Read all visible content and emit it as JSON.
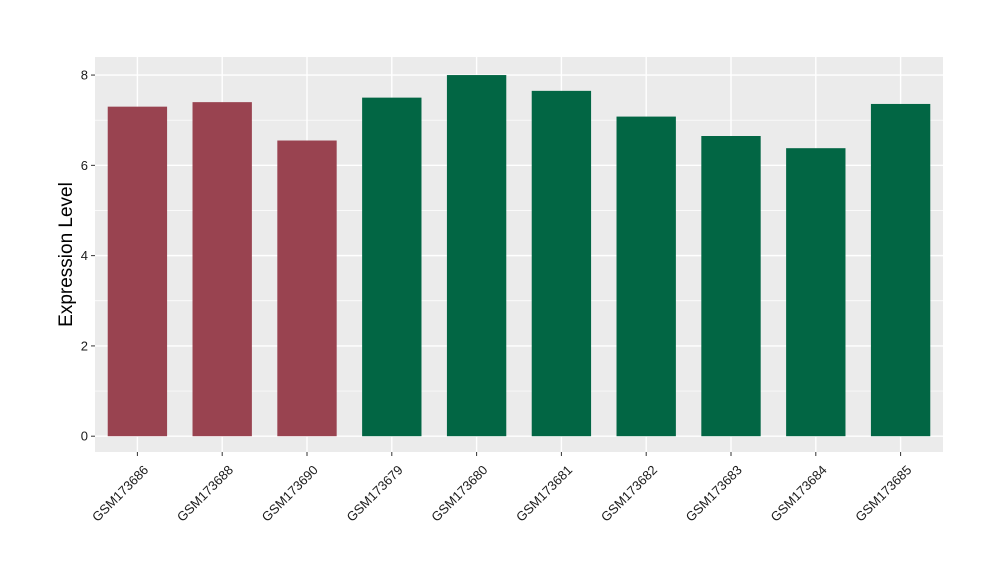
{
  "chart_data": {
    "type": "bar",
    "title": "",
    "xlabel": "",
    "ylabel": "Expression Level",
    "ylim": [
      -0.35,
      8.4
    ],
    "yticks": [
      0,
      2,
      4,
      6,
      8
    ],
    "grid": true,
    "legend": "none",
    "categories": [
      "GSM173686",
      "GSM173688",
      "GSM173690",
      "GSM173679",
      "GSM173680",
      "GSM173681",
      "GSM173682",
      "GSM173683",
      "GSM173684",
      "GSM173685"
    ],
    "values": [
      7.3,
      7.4,
      6.55,
      7.5,
      8.0,
      7.65,
      7.08,
      6.65,
      6.38,
      7.36
    ],
    "groups": [
      "a",
      "a",
      "a",
      "b",
      "b",
      "b",
      "b",
      "b",
      "b",
      "b"
    ],
    "colors": {
      "a": "#994350",
      "b": "#026644"
    },
    "panel_background": "#EBEBEB",
    "grid_color": "#FFFFFF",
    "tick_color": "#333333"
  }
}
